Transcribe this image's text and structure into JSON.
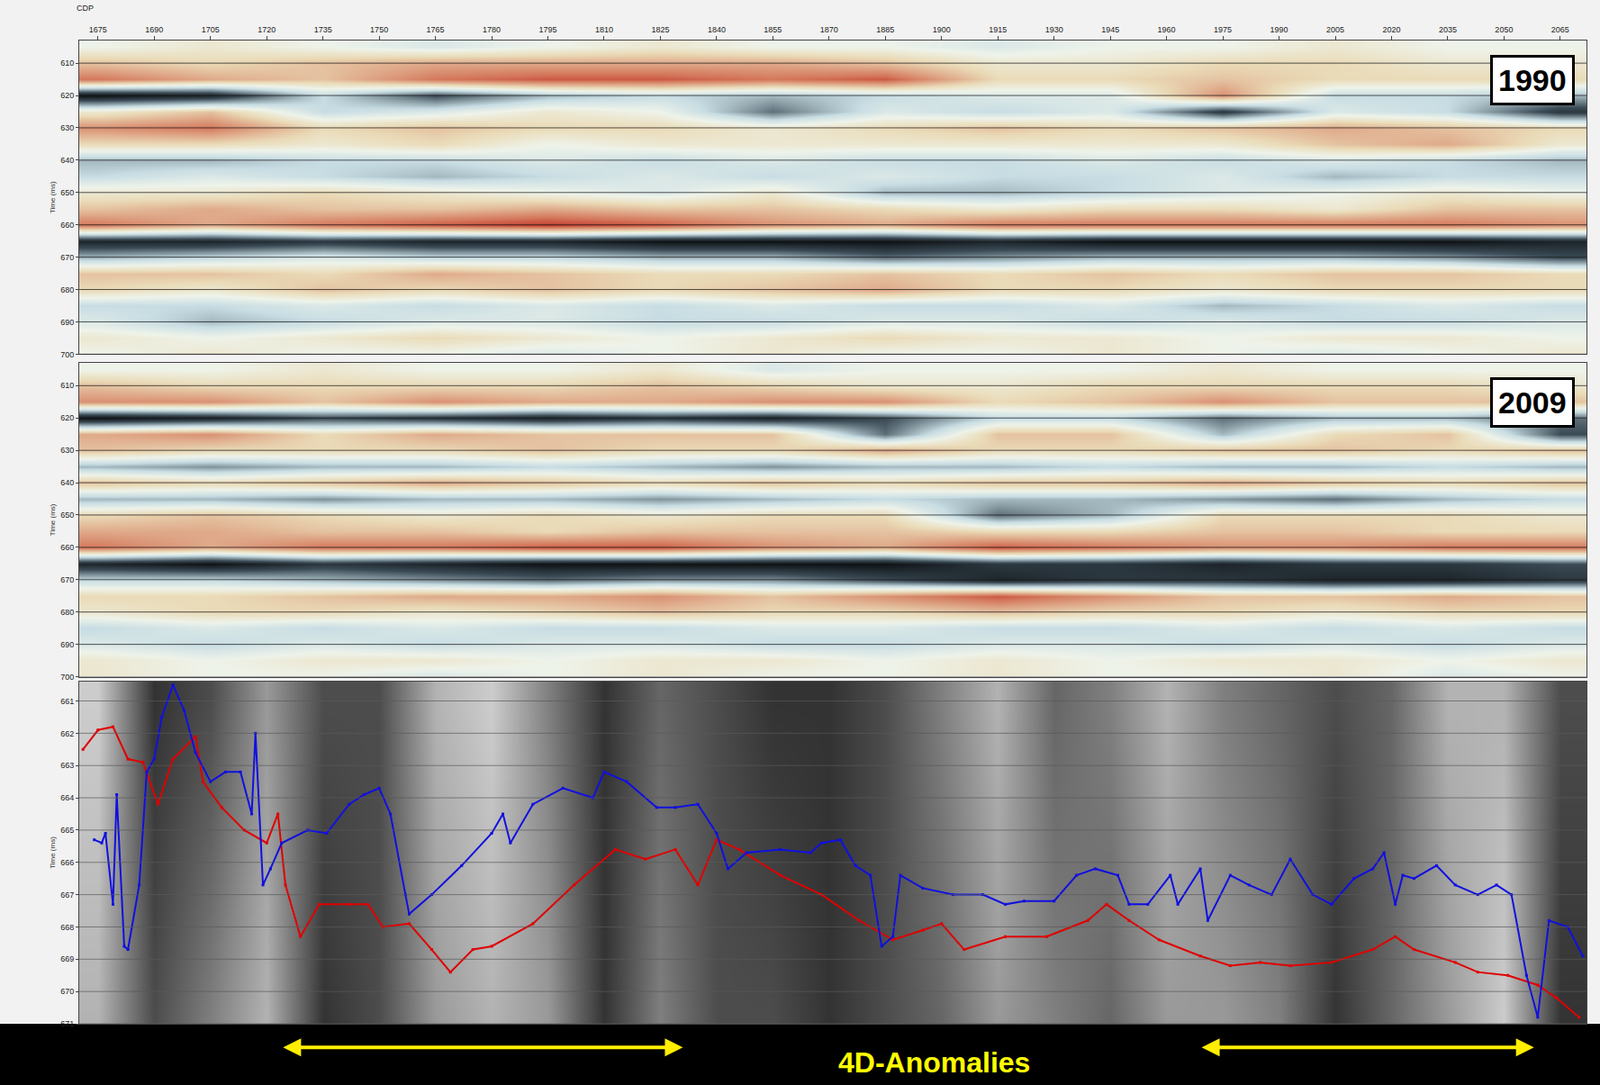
{
  "chart_data": [
    {
      "type": "heatmap",
      "title": "1990",
      "x_label": "CDP",
      "y_label": "Time (ms)",
      "x": [
        1675,
        1705,
        1735,
        1765,
        1795,
        1825,
        1855,
        1885,
        1915,
        1945,
        1975,
        2005,
        2035,
        2065
      ],
      "y": [
        605,
        610,
        615,
        620,
        625,
        630,
        635,
        640,
        645,
        650,
        655,
        660,
        665,
        670,
        675,
        680,
        685,
        690,
        695,
        700
      ],
      "z": [
        [
          0,
          1,
          0,
          -1,
          0,
          1,
          0,
          0,
          -1,
          0,
          0,
          1,
          0,
          0
        ],
        [
          3,
          2,
          3,
          4,
          4,
          4,
          4,
          3,
          1,
          1,
          2,
          2,
          1,
          1
        ],
        [
          6,
          4,
          3,
          6,
          7,
          7,
          6,
          7,
          2,
          2,
          3,
          2,
          2,
          2
        ],
        [
          -9,
          -8,
          -2,
          -6,
          -3,
          -2,
          -3,
          -2,
          -1,
          -1,
          5,
          -2,
          -2,
          -3
        ],
        [
          1,
          3,
          -2,
          -1,
          1,
          0,
          -5,
          -1,
          -2,
          -1,
          -7,
          -1,
          -2,
          -7
        ],
        [
          5,
          6,
          2,
          3,
          2,
          2,
          1,
          2,
          3,
          2,
          3,
          4,
          3,
          2
        ],
        [
          2,
          2,
          1,
          2,
          0,
          1,
          1,
          1,
          1,
          1,
          1,
          3,
          4,
          1
        ],
        [
          -3,
          -3,
          -2,
          -2,
          -1,
          -2,
          -1,
          -2,
          -2,
          -1,
          -2,
          -1,
          -2,
          -3
        ],
        [
          -2,
          -1,
          -2,
          -3,
          -2,
          -1,
          -2,
          -1,
          -2,
          -2,
          -1,
          -3,
          -2,
          -2
        ],
        [
          1,
          1,
          2,
          1,
          0,
          -1,
          1,
          -3,
          -3,
          -2,
          -1,
          0,
          1,
          0
        ],
        [
          3,
          4,
          3,
          3,
          4,
          3,
          3,
          2,
          1,
          2,
          2,
          1,
          3,
          3
        ],
        [
          6,
          4,
          6,
          7,
          8,
          7,
          5,
          4,
          6,
          6,
          6,
          6,
          6,
          5
        ],
        [
          -8,
          -8,
          -7,
          -8,
          -8,
          -9,
          -9,
          -9,
          -8,
          -9,
          -9,
          -9,
          -9,
          -8
        ],
        [
          -3,
          -2,
          -1,
          -2,
          -2,
          -3,
          -3,
          -5,
          -4,
          -3,
          -3,
          -3,
          -4,
          -6
        ],
        [
          3,
          3,
          2,
          4,
          3,
          2,
          2,
          3,
          2,
          3,
          2,
          3,
          3,
          2
        ],
        [
          2,
          1,
          3,
          2,
          3,
          2,
          3,
          4,
          2,
          2,
          1,
          2,
          2,
          2
        ],
        [
          -2,
          -2,
          -1,
          -2,
          -1,
          -2,
          -1,
          -2,
          -2,
          -1,
          -3,
          -2,
          -1,
          -2
        ],
        [
          -1,
          -3,
          -2,
          -1,
          -1,
          -2,
          -2,
          -1,
          -1,
          -2,
          -1,
          -2,
          -2,
          -1
        ],
        [
          1,
          0,
          1,
          2,
          1,
          0,
          1,
          2,
          1,
          1,
          0,
          1,
          1,
          0
        ],
        [
          0,
          1,
          0,
          0,
          -1,
          0,
          1,
          0,
          0,
          1,
          0,
          -1,
          0,
          1
        ]
      ],
      "zlim": [
        -10,
        10
      ],
      "xlim": [
        1670,
        2072
      ],
      "ylim": [
        700,
        603
      ],
      "xticks": [
        1675,
        1690,
        1705,
        1720,
        1735,
        1750,
        1765,
        1780,
        1795,
        1810,
        1825,
        1840,
        1855,
        1870,
        1885,
        1900,
        1915,
        1930,
        1945,
        1960,
        1975,
        1990,
        2005,
        2020,
        2035,
        2050,
        2065
      ],
      "yticks": [
        610,
        620,
        630,
        640,
        650,
        660,
        670,
        680,
        690,
        700
      ],
      "grid": true,
      "tick_labels": true
    },
    {
      "type": "heatmap",
      "title": "2009",
      "y_label": "Time (ms)",
      "x": [
        1675,
        1705,
        1735,
        1765,
        1795,
        1825,
        1855,
        1885,
        1915,
        1945,
        1975,
        2005,
        2035,
        2065
      ],
      "y": [
        605,
        610,
        615,
        620,
        625,
        630,
        635,
        640,
        645,
        650,
        655,
        660,
        665,
        670,
        675,
        680,
        685,
        690,
        695,
        700
      ],
      "z": [
        [
          0,
          0,
          1,
          0,
          0,
          1,
          -1,
          0,
          0,
          0,
          1,
          0,
          0,
          0
        ],
        [
          3,
          2,
          2,
          2,
          2,
          3,
          2,
          1,
          1,
          2,
          2,
          2,
          2,
          1
        ],
        [
          5,
          5,
          3,
          5,
          4,
          4,
          5,
          5,
          2,
          3,
          5,
          3,
          3,
          3
        ],
        [
          -9,
          -8,
          -6,
          -7,
          -8,
          -7,
          -8,
          -6,
          -2,
          -2,
          -5,
          -3,
          -3,
          -5
        ],
        [
          4,
          5,
          2,
          4,
          3,
          3,
          3,
          -5,
          3,
          3,
          -3,
          2,
          3,
          -6
        ],
        [
          3,
          2,
          2,
          2,
          3,
          2,
          2,
          4,
          2,
          2,
          3,
          3,
          2,
          3
        ],
        [
          -3,
          -4,
          -3,
          -3,
          -2,
          -3,
          -4,
          -3,
          -3,
          -2,
          -3,
          -3,
          -2,
          -3
        ],
        [
          3,
          2,
          3,
          4,
          3,
          2,
          3,
          2,
          3,
          3,
          4,
          3,
          2,
          3
        ],
        [
          -3,
          -3,
          -4,
          -3,
          -3,
          -4,
          -3,
          -2,
          -3,
          -3,
          -4,
          -5,
          -3,
          -2
        ],
        [
          2,
          3,
          2,
          1,
          2,
          1,
          2,
          2,
          -5,
          -3,
          2,
          2,
          2,
          1
        ],
        [
          4,
          4,
          3,
          3,
          2,
          3,
          3,
          3,
          2,
          2,
          3,
          3,
          2,
          2
        ],
        [
          6,
          4,
          6,
          6,
          7,
          7,
          5,
          4,
          7,
          6,
          5,
          5,
          6,
          6
        ],
        [
          -8,
          -9,
          -7,
          -8,
          -9,
          -9,
          -9,
          -9,
          -7,
          -7,
          -8,
          -7,
          -7,
          -6
        ],
        [
          -2,
          -2,
          -3,
          -4,
          -5,
          -4,
          -4,
          -6,
          -8,
          -7,
          -7,
          -8,
          -8,
          -7
        ],
        [
          2,
          2,
          3,
          4,
          4,
          5,
          3,
          5,
          7,
          5,
          3,
          3,
          4,
          3
        ],
        [
          1,
          2,
          2,
          1,
          2,
          3,
          2,
          2,
          3,
          2,
          2,
          1,
          2,
          2
        ],
        [
          -2,
          -1,
          -2,
          -1,
          -2,
          -2,
          -1,
          -1,
          -2,
          -2,
          -1,
          -2,
          -1,
          -2
        ],
        [
          -1,
          -2,
          -1,
          -2,
          -1,
          -1,
          -2,
          -2,
          -1,
          -1,
          -2,
          -1,
          -2,
          -1
        ],
        [
          1,
          0,
          1,
          1,
          0,
          1,
          1,
          0,
          1,
          0,
          1,
          1,
          0,
          1
        ],
        [
          1,
          0,
          0,
          -1,
          0,
          1,
          0,
          0,
          1,
          0,
          0,
          1,
          -1,
          0
        ]
      ],
      "zlim": [
        -10,
        10
      ],
      "xlim": [
        1670,
        2072
      ],
      "ylim": [
        700,
        603
      ],
      "yticks": [
        610,
        620,
        630,
        640,
        650,
        660,
        670,
        680,
        690,
        700
      ],
      "grid": true,
      "tick_labels": "y"
    },
    {
      "type": "line",
      "y_label": "Time (ms)",
      "background": {
        "x": [
          1675,
          1690,
          1705,
          1720,
          1735,
          1750,
          1765,
          1780,
          1795,
          1810,
          1825,
          1840,
          1855,
          1870,
          1885,
          1900,
          1915,
          1930,
          1945,
          1960,
          1975,
          1990,
          2005,
          2020,
          2035,
          2050,
          2065
        ],
        "y": [
          661,
          671
        ],
        "z": [
          [
            8,
            2,
            3,
            6,
            3,
            3,
            7,
            8,
            5,
            2,
            4,
            3,
            2,
            2,
            3,
            5,
            7,
            4,
            5,
            7,
            5,
            4,
            3,
            4,
            7,
            7,
            3
          ],
          [
            7,
            3,
            5,
            7,
            2,
            3,
            6,
            7,
            6,
            2,
            5,
            3,
            3,
            2,
            3,
            4,
            6,
            5,
            4,
            6,
            6,
            5,
            2,
            4,
            6,
            8,
            2
          ]
        ],
        "zlim": [
          0,
          10
        ]
      },
      "series": [
        {
          "color": "#e00000",
          "marker": "square",
          "line_style": "solid",
          "x": [
            1671,
            1675,
            1679,
            1683,
            1687,
            1691,
            1695,
            1701,
            1703,
            1708,
            1714,
            1720,
            1723,
            1725,
            1729,
            1734,
            1742,
            1747,
            1751,
            1758,
            1764,
            1769,
            1775,
            1780,
            1791,
            1802,
            1813,
            1821,
            1829,
            1835,
            1840,
            1846,
            1857,
            1868,
            1878,
            1887,
            1895,
            1900,
            1906,
            1917,
            1928,
            1939,
            1944,
            1950,
            1958,
            1969,
            1977,
            1985,
            1993,
            2004,
            2015,
            2021,
            2026,
            2037,
            2043,
            2051,
            2059,
            2064,
            2070
          ],
          "values": [
            662.5,
            661.9,
            661.8,
            662.8,
            662.9,
            664.2,
            662.8,
            662.1,
            663.5,
            664.3,
            665.0,
            665.4,
            664.5,
            666.7,
            668.3,
            667.3,
            667.3,
            667.3,
            668.0,
            667.9,
            668.7,
            669.4,
            668.7,
            668.6,
            667.9,
            666.7,
            665.6,
            665.9,
            665.6,
            666.7,
            665.3,
            665.6,
            666.4,
            667.0,
            667.8,
            668.4,
            668.1,
            667.9,
            668.7,
            668.3,
            668.3,
            667.8,
            667.3,
            667.8,
            668.4,
            668.9,
            669.2,
            669.1,
            669.2,
            669.1,
            668.7,
            668.3,
            668.7,
            669.1,
            669.4,
            669.5,
            669.8,
            670.2,
            670.8
          ]
        },
        {
          "color": "#1010e0",
          "marker": "square",
          "line_style": "solid",
          "x": [
            1674,
            1676,
            1677,
            1679,
            1680,
            1682,
            1683,
            1686,
            1688,
            1690,
            1692,
            1695,
            1698,
            1701,
            1705,
            1709,
            1713,
            1716,
            1717,
            1719,
            1721,
            1724,
            1731,
            1736,
            1742,
            1746,
            1750,
            1753,
            1757,
            1758,
            1764,
            1772,
            1780,
            1783,
            1785,
            1791,
            1799,
            1807,
            1810,
            1816,
            1824,
            1829,
            1835,
            1840,
            1843,
            1848,
            1857,
            1865,
            1868,
            1873,
            1877,
            1881,
            1884,
            1887,
            1889,
            1895,
            1903,
            1911,
            1917,
            1922,
            1930,
            1936,
            1941,
            1947,
            1950,
            1955,
            1961,
            1963,
            1969,
            1971,
            1977,
            1982,
            1988,
            1993,
            1999,
            2004,
            2010,
            2015,
            2018,
            2021,
            2023,
            2026,
            2032,
            2037,
            2043,
            2048,
            2052,
            2056,
            2059,
            2062,
            2067,
            2071
          ],
          "values": [
            665.3,
            665.4,
            665.1,
            667.3,
            663.9,
            668.6,
            668.7,
            666.7,
            663.2,
            662.8,
            661.5,
            660.5,
            661.3,
            662.6,
            663.5,
            663.2,
            663.2,
            664.5,
            662.0,
            666.7,
            666.2,
            665.4,
            665.0,
            665.1,
            664.2,
            663.9,
            663.7,
            664.5,
            667.0,
            667.6,
            667.0,
            666.1,
            665.1,
            664.5,
            665.4,
            664.2,
            663.7,
            664.0,
            663.2,
            663.5,
            664.3,
            664.3,
            664.2,
            665.1,
            666.2,
            665.7,
            665.6,
            665.7,
            665.4,
            665.3,
            666.1,
            666.4,
            668.6,
            668.3,
            666.4,
            666.8,
            667.0,
            667.0,
            667.3,
            667.2,
            667.2,
            666.4,
            666.2,
            666.4,
            667.3,
            667.3,
            666.4,
            667.3,
            666.2,
            667.8,
            666.4,
            666.7,
            667.0,
            665.9,
            667.0,
            667.3,
            666.5,
            666.2,
            665.7,
            667.3,
            666.4,
            666.5,
            666.1,
            666.7,
            667.0,
            666.7,
            667.0,
            669.5,
            670.8,
            667.8,
            668.0,
            668.9
          ]
        }
      ],
      "annotations": [
        {
          "text": "4D-Anomalies",
          "arrows": [
            {
              "from": 1724,
              "to": 1831
            },
            {
              "from": 1969,
              "to": 2058
            }
          ]
        }
      ],
      "xlim": [
        1670,
        2072
      ],
      "ylim": [
        671,
        660.4
      ],
      "yticks": [
        661,
        662,
        663,
        664,
        665,
        666,
        667,
        668,
        669,
        670,
        671
      ],
      "grid": true,
      "tick_labels": "y"
    }
  ]
}
